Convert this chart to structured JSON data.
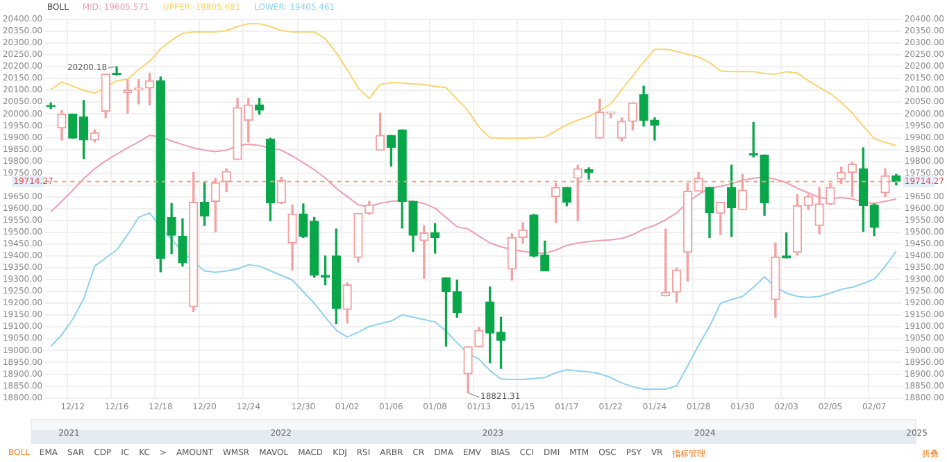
{
  "chart_data": {
    "type": "candlestick",
    "legend_title": "BOLL",
    "legend": "top left",
    "grid": true,
    "categories": [
      null,
      null,
      "12/12",
      null,
      null,
      null,
      "12/16",
      null,
      null,
      null,
      "12/18",
      null,
      null,
      null,
      "12/20",
      null,
      null,
      null,
      "12/24",
      null,
      null,
      null,
      null,
      "12/30",
      null,
      null,
      null,
      "01/02",
      null,
      null,
      null,
      "01/06",
      null,
      null,
      null,
      "01/08",
      null,
      null,
      null,
      "01/13",
      null,
      null,
      null,
      "01/15",
      null,
      null,
      null,
      "01/17",
      null,
      null,
      null,
      "01/22",
      null,
      null,
      null,
      "01/24",
      null,
      null,
      null,
      "01/28",
      null,
      null,
      null,
      "01/30",
      null,
      null,
      null,
      "02/03",
      null,
      null,
      null,
      "02/05",
      null,
      null,
      null,
      "02/07",
      null,
      null
    ],
    "ohlc": [
      [
        20035,
        20047,
        20023,
        20031
      ],
      [
        19941,
        20014,
        19890,
        20000
      ],
      [
        20000,
        20000,
        19898,
        19898
      ],
      [
        19988,
        20057,
        19812,
        19890
      ],
      [
        19890,
        19933,
        19882,
        19921
      ],
      [
        20012,
        20169,
        19984,
        20169
      ],
      [
        20171,
        20200.18,
        20165,
        20167
      ],
      [
        20090,
        20145,
        20004,
        20102
      ],
      [
        20102,
        20145,
        20043,
        20110
      ],
      [
        20110,
        20173,
        20039,
        20141
      ],
      [
        20141,
        20157,
        19333,
        19390
      ],
      [
        19563,
        19622,
        19410,
        19488
      ],
      [
        19484,
        19557,
        19357,
        19371
      ],
      [
        19186,
        19753,
        19165,
        19627
      ],
      [
        19627,
        19710,
        19529,
        19569
      ],
      [
        19631,
        19729,
        19502,
        19710
      ],
      [
        19714,
        19769,
        19671,
        19757
      ],
      [
        19808,
        20067,
        19808,
        20027
      ],
      [
        19974,
        20067,
        19882,
        20039
      ],
      [
        20039,
        20067,
        19999,
        20016
      ],
      [
        19894,
        19898,
        19549,
        19625
      ],
      [
        19625,
        19733,
        19622,
        19720
      ],
      [
        19455,
        19616,
        19341,
        19578
      ],
      [
        19578,
        19620,
        19478,
        19482
      ],
      [
        19547,
        19563,
        19310,
        19318
      ],
      [
        19318,
        19400,
        19278,
        19310
      ],
      [
        19400,
        19514,
        19114,
        19178
      ],
      [
        19174,
        19286,
        19116,
        19278
      ],
      [
        19394,
        19580,
        19374,
        19580
      ],
      [
        19580,
        19631,
        19576,
        19616
      ],
      [
        19847,
        20004,
        19847,
        19910
      ],
      [
        19910,
        19910,
        19780,
        19859
      ],
      [
        19933,
        19933,
        19518,
        19631
      ],
      [
        19631,
        19631,
        19419,
        19488
      ],
      [
        19465,
        19529,
        19306,
        19498
      ],
      [
        19498,
        19537,
        19412,
        19478
      ],
      [
        19308,
        19308,
        19019,
        19249
      ],
      [
        19249,
        19298,
        19141,
        19161
      ],
      [
        18902,
        19016,
        18821.31,
        19016
      ],
      [
        19016,
        19098,
        19016,
        19086
      ],
      [
        19206,
        19269,
        18949,
        19074
      ],
      [
        19078,
        19141,
        18925,
        19043
      ],
      [
        19345,
        19494,
        19298,
        19478
      ],
      [
        19478,
        19541,
        19455,
        19510
      ],
      [
        19573,
        19576,
        19396,
        19400
      ],
      [
        19404,
        19463,
        19337,
        19337
      ],
      [
        19651,
        19706,
        19541,
        19690
      ],
      [
        19690,
        19690,
        19612,
        19627
      ],
      [
        19729,
        19784,
        19549,
        19769
      ],
      [
        19765,
        19773,
        19725,
        19753
      ],
      [
        19898,
        20063,
        19898,
        20008
      ],
      [
        20004,
        20008,
        19984,
        20008
      ],
      [
        19898,
        19984,
        19886,
        19969
      ],
      [
        19969,
        20047,
        19933,
        20047
      ],
      [
        20082,
        20118,
        19949,
        19974
      ],
      [
        19974,
        19984,
        19890,
        19953
      ],
      [
        19231,
        19514,
        19231,
        19247
      ],
      [
        19247,
        19349,
        19204,
        19341
      ],
      [
        19416,
        19706,
        19294,
        19674
      ],
      [
        19674,
        19753,
        19674,
        19729
      ],
      [
        19690,
        19690,
        19478,
        19584
      ],
      [
        19580,
        19627,
        19490,
        19627
      ],
      [
        19690,
        19784,
        19482,
        19604
      ],
      [
        19596,
        19745,
        19596,
        19678
      ],
      [
        19831,
        19965,
        19818,
        19827
      ],
      [
        19827,
        19827,
        19572,
        19624
      ],
      [
        19216,
        19455,
        19141,
        19396
      ],
      [
        19400,
        19498,
        19392,
        19392
      ],
      [
        19416,
        19659,
        19404,
        19612
      ],
      [
        19612,
        19659,
        19596,
        19651
      ],
      [
        19529,
        19690,
        19494,
        19620
      ],
      [
        19620,
        19706,
        19616,
        19690
      ],
      [
        19725,
        19776,
        19706,
        19753
      ],
      [
        19753,
        19796,
        19651,
        19788
      ],
      [
        19769,
        19857,
        19504,
        19612
      ],
      [
        19616,
        19620,
        19486,
        19521
      ],
      [
        19667,
        19769,
        19651,
        19739
      ],
      [
        19739,
        19745,
        19700,
        19714.27
      ]
    ],
    "colors": [
      "#0aa64a",
      "#f4a0a0",
      "#0aa64a",
      "#0aa64a",
      "#f4a0a0",
      "#f4a0a0",
      "#0aa64a",
      "#f4a0a0",
      "#f4a0a0",
      "#f4a0a0",
      "#0aa64a",
      "#0aa64a",
      "#0aa64a",
      "#f4a0a0",
      "#0aa64a",
      "#f4a0a0",
      "#f4a0a0",
      "#f4a0a0",
      "#f4a0a0",
      "#0aa64a",
      "#0aa64a",
      "#f4a0a0",
      "#f4a0a0",
      "#0aa64a",
      "#0aa64a",
      "#0aa64a",
      "#0aa64a",
      "#f4a0a0",
      "#f4a0a0",
      "#f4a0a0",
      "#f4a0a0",
      "#0aa64a",
      "#0aa64a",
      "#0aa64a",
      "#f4a0a0",
      "#0aa64a",
      "#0aa64a",
      "#0aa64a",
      "#f4a0a0",
      "#f4a0a0",
      "#0aa64a",
      "#0aa64a",
      "#f4a0a0",
      "#f4a0a0",
      "#0aa64a",
      "#0aa64a",
      "#f4a0a0",
      "#0aa64a",
      "#f4a0a0",
      "#0aa64a",
      "#f4a0a0",
      "#f4a0a0",
      "#f4a0a0",
      "#f4a0a0",
      "#0aa64a",
      "#0aa64a",
      "#f4a0a0",
      "#f4a0a0",
      "#f4a0a0",
      "#f4a0a0",
      "#0aa64a",
      "#f4a0a0",
      "#0aa64a",
      "#f4a0a0",
      "#0aa64a",
      "#0aa64a",
      "#f4a0a0",
      "#0aa64a",
      "#f4a0a0",
      "#f4a0a0",
      "#f4a0a0",
      "#f4a0a0",
      "#f4a0a0",
      "#f4a0a0",
      "#0aa64a",
      "#0aa64a",
      "#f4a0a0",
      "#0aa64a"
    ],
    "series": [
      {
        "name": "MID: 19605.571",
        "type": "line",
        "color": "#ef9db1",
        "values": [
          19586,
          19631,
          19678,
          19727,
          19769,
          19802,
          19831,
          19857,
          19882,
          19910,
          19904,
          19886,
          19871,
          19857,
          19847,
          19841,
          19847,
          19867,
          19872,
          19867,
          19857,
          19847,
          19823,
          19794,
          19765,
          19729,
          19686,
          19651,
          19616,
          19608,
          19623,
          19631,
          19635,
          19631,
          19622,
          19602,
          19563,
          19523,
          19514,
          19484,
          19455,
          19439,
          19427,
          19420,
          19412,
          19412,
          19425,
          19445,
          19455,
          19461,
          19465,
          19468,
          19474,
          19490,
          19514,
          19529,
          19553,
          19582,
          19627,
          19661,
          19686,
          19694,
          19706,
          19720,
          19729,
          19733,
          19725,
          19710,
          19686,
          19667,
          19647,
          19641,
          19647,
          19641,
          19627,
          19622,
          19631,
          19641
        ]
      },
      {
        "name": "UPPER: 19805.681",
        "type": "line",
        "color": "#fbd36e",
        "values": [
          20103,
          20135,
          20118,
          20100,
          20088,
          20112,
          20141,
          20147,
          20188,
          20223,
          20276,
          20312,
          20341,
          20347,
          20347,
          20347,
          20353,
          20370,
          20382,
          20382,
          20370,
          20353,
          20347,
          20347,
          20347,
          20318,
          20259,
          20188,
          20110,
          20066,
          20125,
          20133,
          20131,
          20127,
          20125,
          20117,
          20112,
          20063,
          20014,
          19945,
          19900,
          19898,
          19898,
          19898,
          19900,
          19902,
          19929,
          19955,
          19974,
          19990,
          20014,
          20043,
          20102,
          20161,
          20220,
          20274,
          20274,
          20265,
          20253,
          20241,
          20218,
          20182,
          20179,
          20179,
          20179,
          20171,
          20168,
          20179,
          20173,
          20141,
          20112,
          20086,
          20049,
          20004,
          19949,
          19896,
          19880,
          19867
        ]
      },
      {
        "name": "LOWER: 19405.461",
        "type": "line",
        "color": "#8dd2ef",
        "values": [
          19018,
          19067,
          19133,
          19219,
          19357,
          19392,
          19425,
          19490,
          19563,
          19582,
          19523,
          19470,
          19419,
          19376,
          19337,
          19331,
          19337,
          19345,
          19363,
          19357,
          19337,
          19318,
          19298,
          19249,
          19200,
          19141,
          19086,
          19057,
          19078,
          19102,
          19114,
          19125,
          19151,
          19141,
          19131,
          19121,
          19082,
          19033,
          18988,
          18964,
          18915,
          18880,
          18878,
          18878,
          18882,
          18886,
          18906,
          18919,
          18914,
          18910,
          18902,
          18886,
          18863,
          18847,
          18837,
          18837,
          18837,
          18851,
          18935,
          19023,
          19102,
          19200,
          19216,
          19229,
          19268,
          19312,
          19269,
          19243,
          19229,
          19225,
          19229,
          19243,
          19259,
          19268,
          19284,
          19302,
          19357,
          19419
        ]
      }
    ],
    "ylim": [
      18800,
      20400
    ],
    "yticks": [
      {
        "value": 18800,
        "label": "18800.00"
      },
      {
        "value": 18850,
        "label": "18850.00"
      },
      {
        "value": 18900,
        "label": "18900.00"
      },
      {
        "value": 18950,
        "label": "18950.00"
      },
      {
        "value": 19000,
        "label": "19000.00"
      },
      {
        "value": 19050,
        "label": "19050.00"
      },
      {
        "value": 19100,
        "label": "19100.00"
      },
      {
        "value": 19150,
        "label": "19150.00"
      },
      {
        "value": 19200,
        "label": "19200.00"
      },
      {
        "value": 19250,
        "label": "19250.00"
      },
      {
        "value": 19300,
        "label": "19300.00"
      },
      {
        "value": 19350,
        "label": "19350.00"
      },
      {
        "value": 19400,
        "label": "19400.00"
      },
      {
        "value": 19450,
        "label": "19450.00"
      },
      {
        "value": 19500,
        "label": "19500.00"
      },
      {
        "value": 19550,
        "label": "19550.00"
      },
      {
        "value": 19600,
        "label": "19600.00"
      },
      {
        "value": 19650,
        "label": "19650.00"
      },
      {
        "value": 19700,
        "label": null
      },
      {
        "value": 19750,
        "label": "19750.00"
      },
      {
        "value": 19800,
        "label": "19800.00"
      },
      {
        "value": 19850,
        "label": "19850.00"
      },
      {
        "value": 19900,
        "label": "19900.00"
      },
      {
        "value": 19950,
        "label": "19950.00"
      },
      {
        "value": 20000,
        "label": "20000.00"
      },
      {
        "value": 20050,
        "label": "20050.00"
      },
      {
        "value": 20100,
        "label": "20100.00"
      },
      {
        "value": 20150,
        "label": "20150.00"
      },
      {
        "value": 20200,
        "label": "20200.00"
      },
      {
        "value": 20250,
        "label": "20250.00"
      },
      {
        "value": 20300,
        "label": "20300.00"
      },
      {
        "value": 20350,
        "label": "20350.00"
      },
      {
        "value": 20400,
        "label": "20400.00"
      }
    ],
    "y2lim": [
      18800,
      20400
    ],
    "y2ticks": [
      {
        "value": 18800,
        "label": "18800.00"
      },
      {
        "value": 18850,
        "label": "18850.00"
      },
      {
        "value": 18900,
        "label": "18900.00"
      },
      {
        "value": 18950,
        "label": "18950.00"
      },
      {
        "value": 19000,
        "label": "19000.00"
      },
      {
        "value": 19050,
        "label": "19050.00"
      },
      {
        "value": 19100,
        "label": "19100.00"
      },
      {
        "value": 19150,
        "label": "19150.00"
      },
      {
        "value": 19200,
        "label": "19200.00"
      },
      {
        "value": 19250,
        "label": "19250.00"
      },
      {
        "value": 19300,
        "label": "19300.00"
      },
      {
        "value": 19350,
        "label": "19350.00"
      },
      {
        "value": 19400,
        "label": "19400.00"
      },
      {
        "value": 19450,
        "label": "19450.00"
      },
      {
        "value": 19500,
        "label": "19500.00"
      },
      {
        "value": 19550,
        "label": "19550.00"
      },
      {
        "value": 19600,
        "label": "19600.00"
      },
      {
        "value": 19650,
        "label": "19650.00"
      },
      {
        "value": 19700,
        "label": null
      },
      {
        "value": 19750,
        "label": "19750.00"
      },
      {
        "value": 19800,
        "label": "19800.00"
      },
      {
        "value": 19850,
        "label": "19850.00"
      },
      {
        "value": 19900,
        "label": "19900.00"
      },
      {
        "value": 19950,
        "label": "19950.00"
      },
      {
        "value": 20000,
        "label": "20000.00"
      },
      {
        "value": 20050,
        "label": "20050.00"
      },
      {
        "value": 20100,
        "label": "20100.00"
      },
      {
        "value": 20150,
        "label": "20150.00"
      },
      {
        "value": 20200,
        "label": "20200.00"
      },
      {
        "value": 20250,
        "label": "20250.00"
      },
      {
        "value": 20300,
        "label": "20300.00"
      },
      {
        "value": 20350,
        "label": "20350.00"
      },
      {
        "value": 20400,
        "label": "20400.00"
      }
    ],
    "ref_lines": [
      {
        "axis": "y",
        "value": 19714.27,
        "label": "19714.27",
        "color": "#f2a07b",
        "line_style": "dashed"
      }
    ],
    "annotations": [
      "20200.18",
      "18821.31",
      "2021",
      "2022",
      "2023",
      "2024",
      "2025",
      "BOLL",
      "EMA",
      "SAR",
      "CDP",
      "IC",
      "KC",
      ">",
      "AMOUNT",
      "WMSR",
      "MAVOL",
      "MACD",
      "KDJ",
      "RSI",
      "ARBR",
      "CR",
      "DMA",
      "EMV",
      "BIAS",
      "CCI",
      "DMI",
      "MTM",
      "OSC",
      "PSY",
      "VR",
      "指标管理",
      "折叠"
    ]
  }
}
